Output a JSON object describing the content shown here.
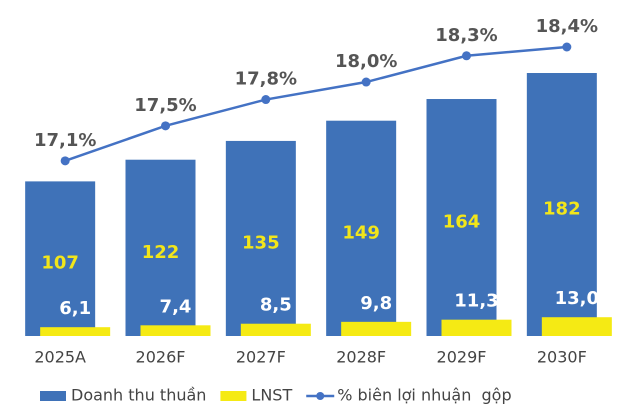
{
  "chart_data": {
    "type": "combo",
    "categories": [
      "2025A",
      "2026F",
      "2027F",
      "2028F",
      "2029F",
      "2030F"
    ],
    "ylim": [
      0,
      200
    ],
    "y2lim": [
      15.1,
      18.4
    ],
    "series": [
      {
        "name": "Doanh thu thuần",
        "type": "bar",
        "color": "#3f72b8",
        "label_color": "#f2e61a",
        "values": [
          107,
          122,
          135,
          149,
          164,
          182
        ]
      },
      {
        "name": "LNST",
        "type": "bar",
        "color": "#f5ea14",
        "label_color": "#ffffff",
        "values": [
          6.1,
          7.4,
          8.5,
          9.8,
          11.3,
          13.0
        ],
        "value_labels": [
          "6,1",
          "7,4",
          "8,5",
          "9,8",
          "11,3",
          "13,0"
        ]
      },
      {
        "name": "% biên lợi nhuận  gộp",
        "type": "line",
        "axis": "y2",
        "color": "#4472c4",
        "label_color": "#555555",
        "values": [
          17.1,
          17.5,
          17.8,
          18.0,
          18.3,
          18.4
        ],
        "value_labels": [
          "17,1%",
          "17,5%",
          "17,8%",
          "18,0%",
          "18,3%",
          "18,4%"
        ]
      }
    ]
  }
}
